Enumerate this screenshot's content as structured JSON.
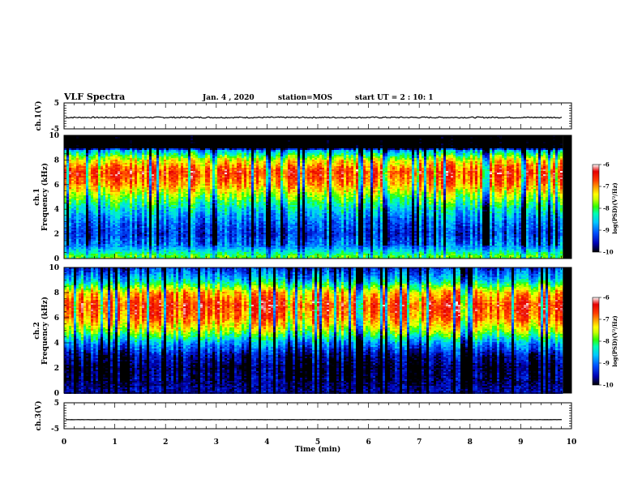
{
  "header": {
    "title": "VLF Spectra",
    "date": "Jan. 4 , 2020",
    "station": "station=MOS",
    "start_ut": "start UT = 2 : 10: 1"
  },
  "chart_data": [
    {
      "type": "line",
      "panel": "ch1-waveform",
      "ylabel": "ch.1(V)",
      "ylim": [
        -5,
        5
      ],
      "yticks": [
        5,
        -5
      ],
      "xlim": [
        0,
        10
      ],
      "series": [
        {
          "values": [
            -0.6,
            -0.6
          ]
        }
      ]
    },
    {
      "type": "heatmap",
      "panel": "ch1-spectrogram",
      "ylabel_line1": "ch.1",
      "ylabel_line2": "Frequency (kHz)",
      "ylim": [
        0,
        10
      ],
      "yticks": [
        0,
        2,
        4,
        6,
        8,
        10
      ],
      "xlim": [
        0,
        10
      ],
      "data_end_min": 9.83,
      "colorbar": {
        "label": "log(PSD)(V²/Hz)",
        "range": [
          -10,
          -6
        ],
        "ticks": [
          -6,
          -7,
          -8,
          -9,
          -10
        ]
      },
      "profile": [
        {
          "f": 0.2,
          "v": -7.9
        },
        {
          "f": 1,
          "v": -8.9
        },
        {
          "f": 2,
          "v": -9.3
        },
        {
          "f": 3,
          "v": -9.0
        },
        {
          "f": 4,
          "v": -8.5
        },
        {
          "f": 5,
          "v": -7.8
        },
        {
          "f": 6,
          "v": -7.0
        },
        {
          "f": 7,
          "v": -6.6
        },
        {
          "f": 8,
          "v": -7.4
        },
        {
          "f": 8.8,
          "v": -8.8
        },
        {
          "f": 9.0,
          "v": -10.5
        }
      ]
    },
    {
      "type": "heatmap",
      "panel": "ch2-spectrogram",
      "ylabel_line1": "ch.2",
      "ylabel_line2": "Frequency (kHz)",
      "ylim": [
        0,
        10
      ],
      "yticks": [
        0,
        2,
        4,
        6,
        8,
        10
      ],
      "xlim": [
        0,
        10
      ],
      "data_end_min": 9.83,
      "colorbar": {
        "label": "log(PSD)(V²/Hz)",
        "range": [
          -10,
          -6
        ],
        "ticks": [
          -6,
          -7,
          -8,
          -9,
          -10
        ]
      },
      "profile": [
        {
          "f": 0.2,
          "v": -9.6
        },
        {
          "f": 1,
          "v": -9.8
        },
        {
          "f": 2,
          "v": -9.9
        },
        {
          "f": 3,
          "v": -9.6
        },
        {
          "f": 4,
          "v": -8.8
        },
        {
          "f": 5,
          "v": -7.6
        },
        {
          "f": 6,
          "v": -6.9
        },
        {
          "f": 7,
          "v": -6.6
        },
        {
          "f": 8,
          "v": -7.2
        },
        {
          "f": 9,
          "v": -8.6
        },
        {
          "f": 10,
          "v": -9.4
        }
      ]
    },
    {
      "type": "line",
      "panel": "ch3-waveform",
      "ylabel": "ch.3(V)",
      "ylim": [
        -5,
        5
      ],
      "yticks": [
        5,
        -5
      ],
      "xlim": [
        0,
        10
      ],
      "series": [
        {
          "values": [
            -1.5,
            -1.5
          ]
        }
      ]
    }
  ],
  "xaxis": {
    "label": "Time (min)",
    "ticks": [
      0,
      1,
      2,
      3,
      4,
      5,
      6,
      7,
      8,
      9,
      10
    ]
  },
  "colormap": [
    "#000000",
    "#0000b4",
    "#0050ff",
    "#00c8ff",
    "#00ffb4",
    "#32ff00",
    "#c8ff00",
    "#ffff00",
    "#ffa000",
    "#ff3c00",
    "#e60000",
    "#ffffff"
  ]
}
